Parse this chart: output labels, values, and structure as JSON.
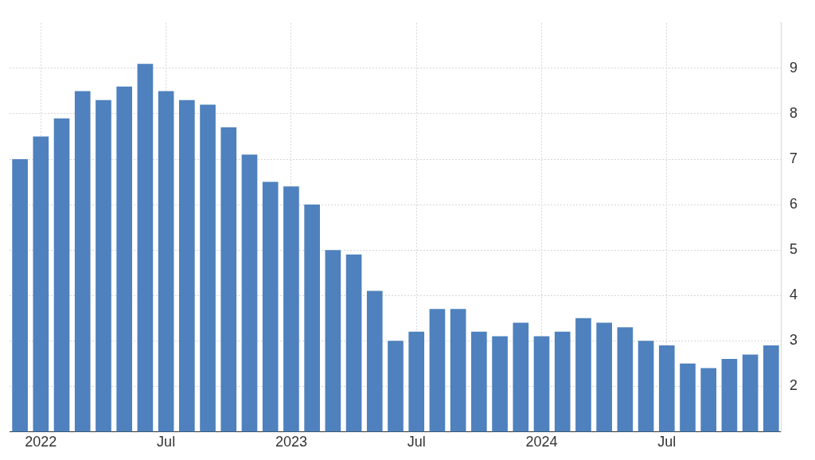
{
  "chart_data": {
    "type": "bar",
    "categories": [
      null,
      "2022",
      null,
      null,
      null,
      null,
      null,
      "Jul",
      null,
      null,
      null,
      null,
      null,
      "2023",
      null,
      null,
      null,
      null,
      null,
      "Jul",
      null,
      null,
      null,
      null,
      null,
      "2024",
      null,
      null,
      null,
      null,
      null,
      "Jul",
      null,
      null,
      null,
      null,
      null
    ],
    "values": [
      7.0,
      7.5,
      7.9,
      8.5,
      8.3,
      8.6,
      9.1,
      8.5,
      8.3,
      8.2,
      7.7,
      7.1,
      6.5,
      6.4,
      6.0,
      5.0,
      4.9,
      4.1,
      3.0,
      3.2,
      3.7,
      3.7,
      3.2,
      3.1,
      3.4,
      3.1,
      3.2,
      3.5,
      3.4,
      3.3,
      3.0,
      2.9,
      2.5,
      2.4,
      2.6,
      2.7,
      2.9
    ],
    "color": "#4e81bd",
    "ylim": [
      1,
      10
    ],
    "yticks": [
      2,
      3,
      4,
      5,
      6,
      7,
      8,
      9
    ],
    "grid": true,
    "legend": false
  }
}
